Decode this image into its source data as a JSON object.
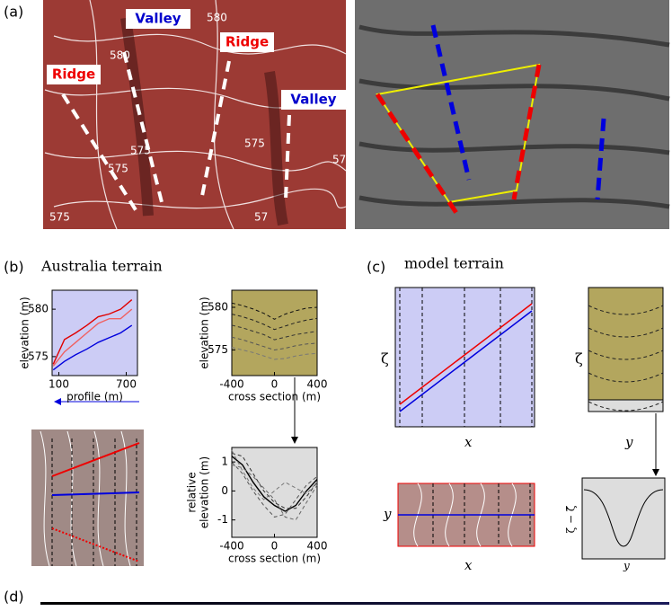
{
  "panels": {
    "a": "(a)",
    "b": "(b)",
    "c": "(c)",
    "d": "(d)"
  },
  "titles": {
    "b": "Australia terrain",
    "c": "model terrain"
  },
  "map_labels": [
    "Valley",
    "Ridge",
    "Ridge",
    "Valley"
  ],
  "contour_labels": [
    "580",
    "580",
    "575",
    "575",
    "575",
    "57",
    "575",
    "57"
  ],
  "model": {
    "zeta": "ζ",
    "x": "x",
    "y": "y",
    "zeta_diff": "ζ − ζ̄"
  },
  "chart_data": [
    {
      "type": "line",
      "xlabel": "profile (m)",
      "ylabel": [
        "elevation (m)"
      ],
      "background": "#ccccf5",
      "x": [
        50,
        150,
        250,
        350,
        450,
        550,
        650,
        750
      ],
      "xlim": [
        40,
        800
      ],
      "xticks": [
        100,
        700
      ],
      "ylim": [
        573,
        582
      ],
      "yticks": [
        575,
        580
      ],
      "series": [
        {
          "name": "upper",
          "color": "#e00000",
          "dashed": false,
          "values": [
            574.2,
            576.8,
            577.5,
            578.3,
            579.2,
            579.5,
            580,
            581
          ]
        },
        {
          "name": "middle",
          "color": "#f06060",
          "dashed": false,
          "values": [
            574,
            575.5,
            576.5,
            577.5,
            578.5,
            579,
            579,
            580
          ]
        },
        {
          "name": "lower",
          "color": "#0000dd",
          "dashed": false,
          "values": [
            573.6,
            574.5,
            575.2,
            575.8,
            576.5,
            577,
            577.5,
            578.3
          ]
        }
      ]
    },
    {
      "type": "line",
      "xlabel": "cross section (m)",
      "ylabel": [
        "elevation (m)"
      ],
      "background": "#b3a65e",
      "x": [
        -400,
        -300,
        -200,
        -100,
        0,
        100,
        200,
        300,
        400
      ],
      "xlim": [
        -400,
        400
      ],
      "xticks": [
        -400,
        0,
        400
      ],
      "ylim": [
        572,
        582
      ],
      "yticks": [
        575,
        580
      ],
      "series": [
        {
          "name": "s1",
          "color": "#111111",
          "dashed": true,
          "values": [
            580.5,
            580.2,
            579.8,
            579.3,
            578.6,
            579.2,
            579.6,
            579.9,
            580
          ]
        },
        {
          "name": "s2",
          "color": "#222222",
          "dashed": true,
          "values": [
            579.2,
            578.9,
            578.5,
            578,
            577.4,
            577.8,
            578.2,
            578.5,
            578.7
          ]
        },
        {
          "name": "s3",
          "color": "#333333",
          "dashed": true,
          "values": [
            577.9,
            577.6,
            577.2,
            576.8,
            576.2,
            576.5,
            576.8,
            577,
            577.2
          ]
        },
        {
          "name": "s4",
          "color": "#555555",
          "dashed": true,
          "values": [
            576.5,
            576.2,
            575.8,
            575.4,
            575,
            575.2,
            575.5,
            575.7,
            575.8
          ]
        },
        {
          "name": "s5",
          "color": "#777777",
          "dashed": true,
          "values": [
            575.3,
            575,
            574.7,
            574.3,
            573.9,
            574,
            574.3,
            574.5,
            574.6
          ]
        }
      ]
    },
    {
      "type": "line",
      "xlabel": "cross section (m)",
      "ylabel": [
        "relative",
        "elevation (m)"
      ],
      "background": "#dddddd",
      "x": [
        -400,
        -300,
        -200,
        -100,
        0,
        100,
        200,
        300,
        400
      ],
      "xlim": [
        -400,
        400
      ],
      "xticks": [
        -400,
        0,
        400
      ],
      "ylim": [
        -1.6,
        1.5
      ],
      "yticks": [
        -1,
        0,
        1
      ],
      "series": [
        {
          "name": "mean",
          "color": "#000000",
          "dashed": false,
          "values": [
            1.2,
            0.9,
            0.3,
            -0.2,
            -0.5,
            -0.7,
            -0.5,
            0,
            0.4
          ]
        },
        {
          "name": "d1",
          "color": "#333333",
          "dashed": true,
          "values": [
            1.3,
            1.2,
            0.6,
            0,
            -0.4,
            -0.6,
            -0.6,
            -0.2,
            0.3
          ]
        },
        {
          "name": "d2",
          "color": "#555555",
          "dashed": true,
          "values": [
            1,
            0.6,
            0,
            -0.5,
            -0.9,
            -0.8,
            -0.3,
            0.2,
            0.5
          ]
        },
        {
          "name": "d3",
          "color": "#666666",
          "dashed": true,
          "values": [
            0.9,
            0.8,
            0.5,
            0.1,
            -0.3,
            -0.9,
            -1,
            -0.4,
            0.2
          ]
        },
        {
          "name": "d4",
          "color": "#777777",
          "dashed": true,
          "values": [
            1.4,
            0.7,
            0.1,
            -0.3,
            0,
            0.3,
            0.1,
            -0.1,
            0.3
          ]
        }
      ]
    }
  ]
}
